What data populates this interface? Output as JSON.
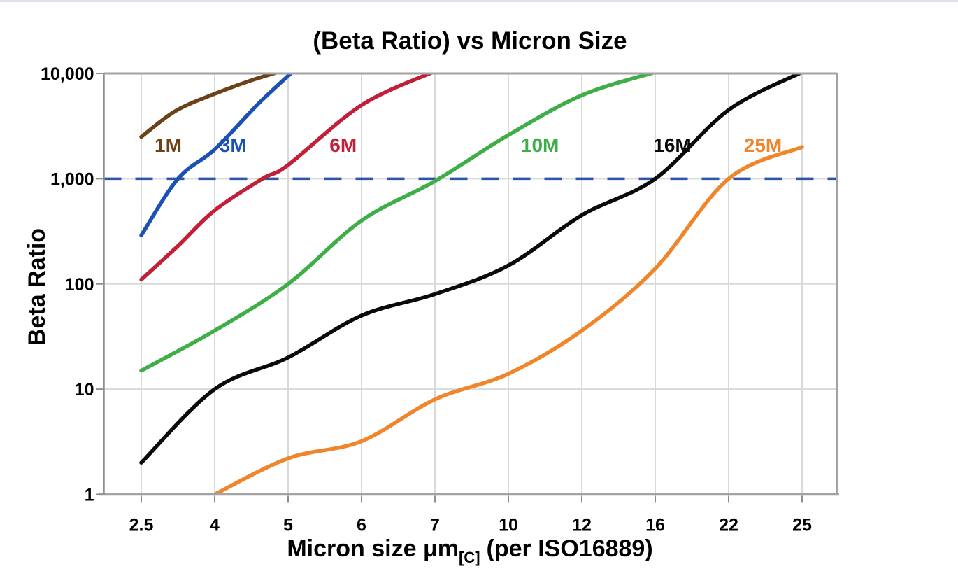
{
  "page": {
    "top_divider_color": "#dce0e9",
    "background_color": "#ffffff"
  },
  "chart": {
    "title": "(Beta Ratio) vs Micron Size",
    "y_axis": {
      "title": "Beta Ratio",
      "tick_labels": [
        "1",
        "10",
        "100",
        "1,000",
        "10,000"
      ]
    },
    "x_axis": {
      "title_main": "Micron size μm",
      "title_sub": "[C]",
      "title_tail": "(per ISO16889)",
      "tick_labels": [
        "2.5",
        "4",
        "5",
        "6",
        "7",
        "10",
        "12",
        "16",
        "22",
        "25"
      ]
    },
    "styles": {
      "gridline_color": "#d9d9d9",
      "frame_color": "#a3a3a3",
      "axis_color": "#8f8f8f",
      "text_color": "#000000"
    }
  },
  "chart_data": {
    "type": "line",
    "title": "(Beta Ratio) vs Micron Size",
    "xlabel": "Micron size μm[C] (per ISO16889)",
    "ylabel": "Beta Ratio",
    "x_scale": "categorical",
    "x_categories": [
      2.5,
      4,
      5,
      6,
      7,
      10,
      12,
      16,
      22,
      25
    ],
    "y_scale": "log",
    "ylim": [
      1,
      10000
    ],
    "y_ticks": [
      1,
      10,
      100,
      1000,
      10000
    ],
    "grid": true,
    "legend_position": "inline-labels",
    "reference_line": {
      "y": 1000,
      "style": "dashed",
      "color": "#2d55a8"
    },
    "series": [
      {
        "name": "1M",
        "color": "#6d4117",
        "label_at": [
          3.05,
          2100
        ],
        "points": [
          [
            2.5,
            2500
          ],
          [
            3.2,
            4400
          ],
          [
            4,
            6400
          ],
          [
            4.5,
            8600
          ],
          [
            5,
            11000
          ]
        ]
      },
      {
        "name": "3M",
        "color": "#1b51b5",
        "label_at": [
          4.25,
          2100
        ],
        "points": [
          [
            2.5,
            290
          ],
          [
            3.25,
            1000
          ],
          [
            4,
            1900
          ],
          [
            4.6,
            5200
          ],
          [
            5.1,
            11000
          ]
        ]
      },
      {
        "name": "6M",
        "color": "#c22038",
        "label_at": [
          5.75,
          2100
        ],
        "points": [
          [
            2.5,
            110
          ],
          [
            3.25,
            230
          ],
          [
            4,
            500
          ],
          [
            4.65,
            1000
          ],
          [
            5,
            1350
          ],
          [
            6,
            5000
          ],
          [
            6.97,
            10300
          ]
        ]
      },
      {
        "name": "10M",
        "color": "#3fae49",
        "label_at": [
          10.86,
          2100
        ],
        "points": [
          [
            2.5,
            15
          ],
          [
            4,
            36
          ],
          [
            5,
            100
          ],
          [
            6,
            400
          ],
          [
            7,
            950
          ],
          [
            10,
            2600
          ],
          [
            12,
            6200
          ],
          [
            16,
            10300
          ]
        ]
      },
      {
        "name": "16M",
        "color": "#0a0a0a",
        "label_at": [
          17.4,
          2100
        ],
        "points": [
          [
            2.5,
            2
          ],
          [
            4,
            10
          ],
          [
            5,
            20
          ],
          [
            6,
            50
          ],
          [
            7,
            80
          ],
          [
            10,
            150
          ],
          [
            12,
            450
          ],
          [
            16,
            1000
          ],
          [
            22,
            4500
          ],
          [
            25,
            10300
          ]
        ]
      },
      {
        "name": "25M",
        "color": "#f0862c",
        "label_at": [
          23.4,
          2100
        ],
        "points": [
          [
            4,
            1
          ],
          [
            5,
            2.2
          ],
          [
            6,
            3.2
          ],
          [
            7,
            8
          ],
          [
            10,
            14
          ],
          [
            12,
            36
          ],
          [
            16,
            140
          ],
          [
            22,
            1000
          ],
          [
            25,
            2000
          ]
        ]
      }
    ]
  }
}
